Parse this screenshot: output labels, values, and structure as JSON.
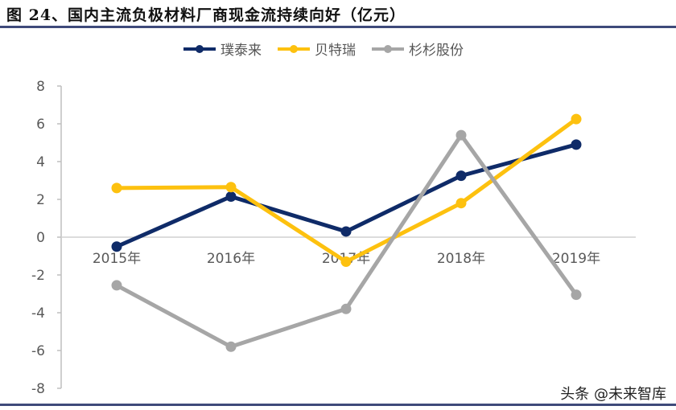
{
  "title": "图 24、国内主流负极材料厂商现金流持续向好（亿元）",
  "watermark": "头条 @未来智库",
  "colors": {
    "pt": "#0f2b68",
    "btr": "#fdc10f",
    "ss": "#a6a6a6",
    "axis": "#bfbfbf",
    "rule": "#3e4a7a"
  },
  "chart_data": {
    "type": "line",
    "title": "国内主流负极材料厂商现金流持续向好（亿元）",
    "xlabel": "",
    "ylabel": "亿元",
    "categories": [
      "2015年",
      "2016年",
      "2017年",
      "2018年",
      "2019年"
    ],
    "series": [
      {
        "name": "璞泰来",
        "color": "#0f2b68",
        "values": [
          -0.5,
          2.15,
          0.3,
          3.25,
          4.9
        ]
      },
      {
        "name": "贝特瑞",
        "color": "#fdc10f",
        "values": [
          2.6,
          2.65,
          -1.3,
          1.8,
          6.25
        ]
      },
      {
        "name": "杉杉股份",
        "color": "#a6a6a6",
        "values": [
          -2.55,
          -5.8,
          -3.8,
          5.4,
          -3.05
        ]
      }
    ],
    "ylim": [
      -8,
      8
    ],
    "yticks": [
      8,
      6,
      4,
      2,
      0,
      -2,
      -4,
      -6,
      -8
    ],
    "ytick_labels": [
      "8",
      "6",
      "4",
      "2",
      "0",
      "-2",
      "-4",
      "-6",
      "-8"
    ],
    "grid": false,
    "legend_position": "top"
  }
}
